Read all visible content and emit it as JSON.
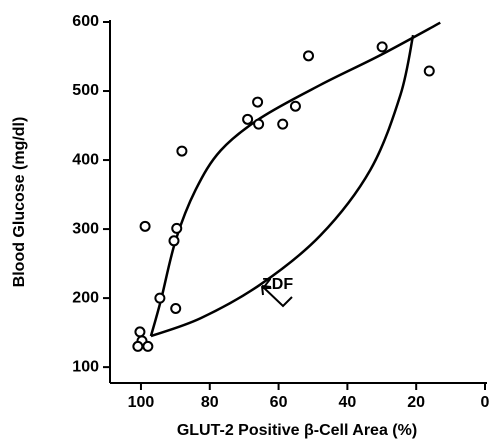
{
  "chart_data": {
    "type": "scatter",
    "xlabel": "GLUT-2 Positive β-Cell Area (%)",
    "ylabel": "Blood Glucose (mg/dl)",
    "xlim": [
      109,
      0
    ],
    "ylim": [
      77,
      600
    ],
    "xticks": [
      100,
      80,
      60,
      40,
      20,
      0
    ],
    "yticks": [
      100,
      200,
      300,
      400,
      500,
      600
    ],
    "color": "#000000",
    "points": {
      "x": [
        29.9,
        16.2,
        51.3,
        55.1,
        58.8,
        69.0,
        66.1,
        65.8,
        88.1,
        98.8,
        89.6,
        90.4,
        94.5,
        89.9,
        100.3,
        99.7,
        100.9,
        98.0
      ],
      "y": [
        564,
        529,
        551,
        478,
        452,
        459,
        484,
        452,
        413,
        304,
        301,
        283,
        200,
        185,
        151,
        138,
        130,
        130
      ]
    },
    "curves": [
      {
        "x": [
          97.1,
          94.2,
          89.9,
          84.1,
          76.8,
          65.2,
          47.8,
          30.4,
          13.0
        ],
        "y": [
          145,
          197,
          284,
          357,
          414,
          461,
          509,
          552,
          599
        ]
      },
      {
        "x": [
          97.1,
          82.6,
          65.2,
          47.8,
          33.3,
          24.6,
          20.9
        ],
        "y": [
          145,
          171,
          220,
          291,
          386,
          494,
          581
        ]
      }
    ],
    "annotation": "ZDF"
  }
}
